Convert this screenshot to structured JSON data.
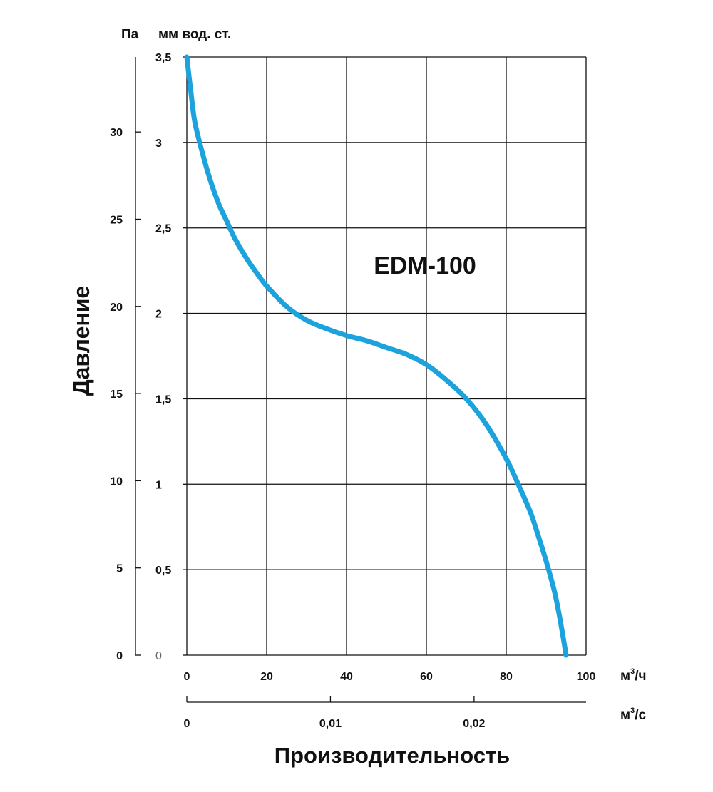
{
  "chart_data": {
    "type": "line",
    "title": "EDM-100",
    "xlabel": "Производительность",
    "ylabel": "Давление",
    "x_unit_primary": "м",
    "x_unit_primary_sup": "3",
    "x_unit_primary_suffix": "/ч",
    "x_unit_secondary": "м",
    "x_unit_secondary_sup": "3",
    "x_unit_secondary_suffix": "/с",
    "y_unit_left": "Па",
    "y_unit_right": "мм вод. ст.",
    "xlim": [
      0,
      100
    ],
    "ylim_mm": [
      0,
      3.5
    ],
    "ylim_pa": [
      0,
      34.3
    ],
    "x_ticks": [
      {
        "value": 0,
        "label": "0"
      },
      {
        "value": 20,
        "label": "20"
      },
      {
        "value": 40,
        "label": "40"
      },
      {
        "value": 60,
        "label": "60"
      },
      {
        "value": 80,
        "label": "80"
      },
      {
        "value": 100,
        "label": "100"
      }
    ],
    "x2_ticks": [
      {
        "value": 0,
        "label": "0"
      },
      {
        "value": 0.01,
        "label": "0,01"
      },
      {
        "value": 0.02,
        "label": "0,02"
      }
    ],
    "x2_max": 0.0278,
    "y_mm_ticks": [
      {
        "value": 0,
        "label": "0"
      },
      {
        "value": 0.5,
        "label": "0,5"
      },
      {
        "value": 1,
        "label": "1"
      },
      {
        "value": 1.5,
        "label": "1,5"
      },
      {
        "value": 2,
        "label": "2"
      },
      {
        "value": 2.5,
        "label": "2,5"
      },
      {
        "value": 3,
        "label": "3"
      },
      {
        "value": 3.5,
        "label": "3,5"
      }
    ],
    "y_pa_ticks": [
      {
        "value": 0,
        "label": "0"
      },
      {
        "value": 5,
        "label": "5"
      },
      {
        "value": 10,
        "label": "10"
      },
      {
        "value": 15,
        "label": "15"
      },
      {
        "value": 20,
        "label": "20"
      },
      {
        "value": 25,
        "label": "25"
      },
      {
        "value": 30,
        "label": "30"
      }
    ],
    "grid": true,
    "series": [
      {
        "color": "#1ca3de",
        "x": [
          0,
          1,
          2,
          4,
          6,
          8,
          10,
          12,
          15,
          18,
          20,
          25,
          30,
          35,
          40,
          45,
          50,
          55,
          60,
          65,
          70,
          75,
          80,
          83,
          86,
          88,
          90,
          92,
          93,
          94,
          95
        ],
        "y": [
          3.5,
          3.3,
          3.12,
          2.93,
          2.77,
          2.64,
          2.54,
          2.44,
          2.32,
          2.22,
          2.16,
          2.04,
          1.96,
          1.91,
          1.87,
          1.84,
          1.8,
          1.76,
          1.7,
          1.61,
          1.5,
          1.35,
          1.15,
          1.0,
          0.84,
          0.7,
          0.55,
          0.38,
          0.27,
          0.14,
          0.0
        ]
      }
    ]
  }
}
